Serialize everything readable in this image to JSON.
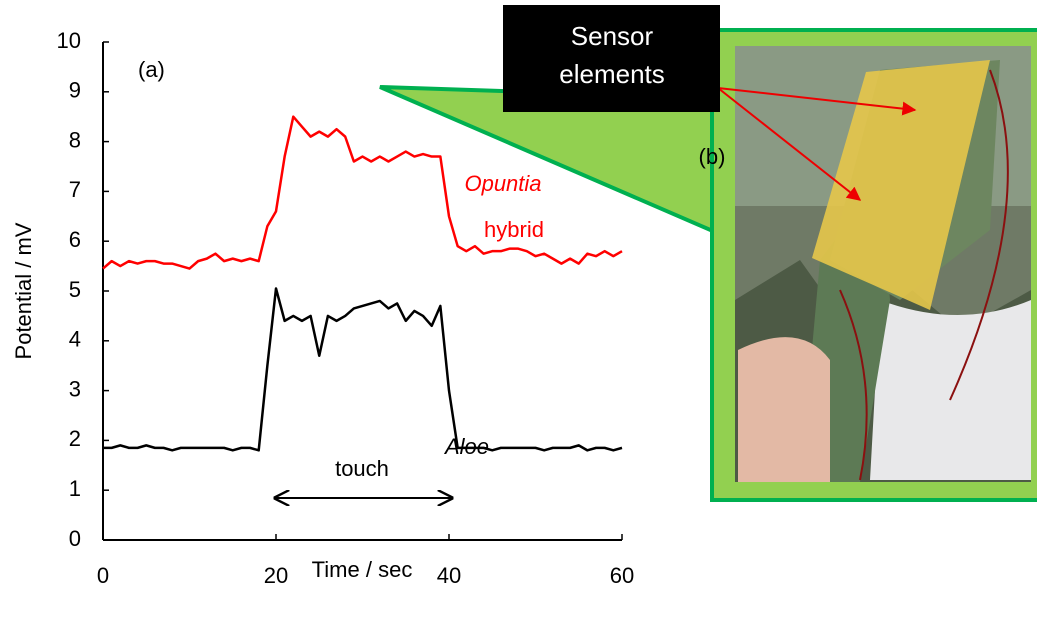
{
  "chart_data": {
    "type": "line",
    "x_label": "Time / sec",
    "y_label": "Potential / mV",
    "x": [
      0,
      1,
      2,
      3,
      4,
      5,
      6,
      7,
      8,
      9,
      10,
      11,
      12,
      13,
      14,
      15,
      16,
      17,
      18,
      19,
      20,
      21,
      22,
      23,
      24,
      25,
      26,
      27,
      28,
      29,
      30,
      31,
      32,
      33,
      34,
      35,
      36,
      37,
      38,
      39,
      40,
      41,
      42,
      43,
      44,
      45,
      46,
      47,
      48,
      49,
      50,
      51,
      52,
      53,
      54,
      55,
      56,
      57,
      58,
      59,
      60
    ],
    "series": [
      {
        "name": "Opuntia",
        "color": "#ff0000",
        "values": [
          5.45,
          5.6,
          5.5,
          5.6,
          5.55,
          5.6,
          5.6,
          5.55,
          5.55,
          5.5,
          5.45,
          5.6,
          5.65,
          5.75,
          5.6,
          5.65,
          5.6,
          5.65,
          5.6,
          6.3,
          6.6,
          7.7,
          8.5,
          8.3,
          8.1,
          8.2,
          8.1,
          8.25,
          8.1,
          7.6,
          7.7,
          7.6,
          7.7,
          7.6,
          7.7,
          7.8,
          7.7,
          7.75,
          7.7,
          7.7,
          6.5,
          5.9,
          5.8,
          5.9,
          5.75,
          5.8,
          5.8,
          5.85,
          5.85,
          5.8,
          5.7,
          5.75,
          5.65,
          5.55,
          5.65,
          5.55,
          5.75,
          5.7,
          5.8,
          5.7,
          5.8
        ]
      },
      {
        "name": "Aloe",
        "color": "#000000",
        "values": [
          1.85,
          1.85,
          1.9,
          1.85,
          1.85,
          1.9,
          1.85,
          1.85,
          1.8,
          1.85,
          1.85,
          1.85,
          1.85,
          1.85,
          1.85,
          1.8,
          1.85,
          1.85,
          1.8,
          3.5,
          5.05,
          4.4,
          4.5,
          4.4,
          4.5,
          3.7,
          4.5,
          4.4,
          4.5,
          4.65,
          4.7,
          4.75,
          4.8,
          4.65,
          4.75,
          4.4,
          4.6,
          4.5,
          4.3,
          4.7,
          3.0,
          1.85,
          1.85,
          1.85,
          1.85,
          1.8,
          1.85,
          1.85,
          1.85,
          1.85,
          1.85,
          1.8,
          1.85,
          1.85,
          1.85,
          1.9,
          1.8,
          1.85,
          1.85,
          1.8,
          1.85
        ]
      }
    ],
    "xlim": [
      0,
      60
    ],
    "xticks": [
      0,
      20,
      40,
      60
    ],
    "ylim": [
      0,
      10
    ],
    "yticks": [
      0,
      1,
      2,
      3,
      4,
      5,
      6,
      7,
      8,
      9,
      10
    ],
    "annotations": [
      "(a)",
      "hybrid",
      "touch",
      "(b)"
    ],
    "callout": [
      "Sensor",
      "elements"
    ]
  }
}
